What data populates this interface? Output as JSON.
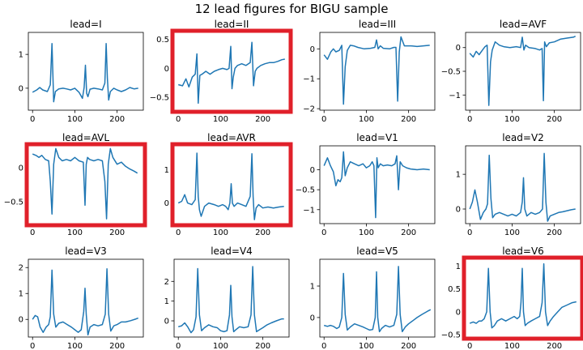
{
  "figure": {
    "title": "12 lead figures for BIGU sample",
    "line_color": "#1f77b4",
    "highlight_color": "#e0202a"
  },
  "chart_data": [
    {
      "type": "line",
      "title": "lead=I",
      "highlighted": false,
      "xlim": [
        -10,
        262
      ],
      "ylim": [
        -0.65,
        1.65
      ],
      "xticks": [
        0,
        100,
        200
      ],
      "yticks": [
        0,
        1
      ],
      "x": [
        0,
        10,
        17,
        24,
        35,
        42,
        46,
        50,
        54,
        62,
        72,
        80,
        90,
        100,
        110,
        118,
        122,
        125,
        128,
        131,
        136,
        145,
        155,
        165,
        171,
        174,
        177,
        180,
        184,
        192,
        200,
        210,
        220,
        230,
        240,
        250
      ],
      "values": [
        -0.12,
        -0.05,
        0.02,
        -0.05,
        -0.1,
        0.1,
        1.32,
        -0.4,
        -0.1,
        -0.02,
        0.0,
        -0.02,
        -0.05,
        0.0,
        -0.12,
        -0.3,
        0.02,
        0.68,
        -0.15,
        -0.25,
        -0.03,
        0.0,
        -0.02,
        -0.05,
        0.15,
        1.32,
        0.3,
        -0.35,
        -0.1,
        0.0,
        -0.05,
        -0.1,
        -0.05,
        0.02,
        -0.02,
        0.0
      ]
    },
    {
      "type": "line",
      "title": "lead=II",
      "highlighted": true,
      "xlim": [
        -10,
        262
      ],
      "ylim": [
        -0.72,
        0.62
      ],
      "xticks": [
        0,
        100,
        200
      ],
      "yticks": [
        -0.5,
        0,
        0.5
      ],
      "x": [
        0,
        10,
        18,
        25,
        33,
        40,
        44,
        47,
        51,
        56,
        65,
        75,
        85,
        95,
        105,
        115,
        120,
        124,
        127,
        130,
        134,
        140,
        150,
        160,
        170,
        174,
        178,
        182,
        186,
        195,
        205,
        215,
        225,
        235,
        245,
        252
      ],
      "values": [
        -0.28,
        -0.3,
        -0.18,
        -0.32,
        -0.15,
        -0.1,
        0.25,
        -0.6,
        -0.12,
        -0.1,
        -0.05,
        -0.1,
        -0.05,
        -0.02,
        0.0,
        -0.02,
        0.0,
        0.38,
        -0.35,
        -0.15,
        0.0,
        0.05,
        0.08,
        0.05,
        0.1,
        0.45,
        -0.3,
        -0.05,
        0.0,
        0.05,
        0.08,
        0.1,
        0.1,
        0.12,
        0.15,
        0.16
      ]
    },
    {
      "type": "line",
      "title": "lead=III",
      "highlighted": false,
      "xlim": [
        -10,
        262
      ],
      "ylim": [
        -2.05,
        0.55
      ],
      "xticks": [
        0,
        100,
        200
      ],
      "yticks": [
        -2,
        -1,
        0
      ],
      "x": [
        0,
        8,
        16,
        22,
        28,
        36,
        42,
        46,
        50,
        55,
        62,
        70,
        80,
        95,
        110,
        120,
        124,
        128,
        133,
        140,
        155,
        165,
        170,
        174,
        178,
        182,
        190,
        205,
        220,
        235,
        250
      ],
      "values": [
        -0.2,
        -0.35,
        -0.1,
        0.0,
        -0.1,
        -0.05,
        0.12,
        -1.85,
        -0.6,
        -0.05,
        0.12,
        0.1,
        0.05,
        0.0,
        0.02,
        0.05,
        0.3,
        0.0,
        0.1,
        0.02,
        0.0,
        0.05,
        0.05,
        -1.75,
        -0.1,
        0.4,
        0.1,
        0.1,
        0.08,
        0.1,
        0.12
      ]
    },
    {
      "type": "line",
      "title": "lead=AVF",
      "highlighted": false,
      "xlim": [
        -10,
        262
      ],
      "ylim": [
        -1.32,
        0.32
      ],
      "xticks": [
        0,
        100,
        200
      ],
      "yticks": [
        -1,
        -0.5,
        0
      ],
      "x": [
        0,
        8,
        15,
        22,
        30,
        36,
        41,
        45,
        49,
        53,
        60,
        70,
        80,
        95,
        110,
        120,
        124,
        128,
        132,
        140,
        155,
        165,
        171,
        174,
        177,
        181,
        188,
        200,
        215,
        230,
        245,
        250
      ],
      "values": [
        -0.12,
        -0.2,
        -0.08,
        -0.15,
        -0.05,
        0.02,
        0.05,
        -1.22,
        -0.3,
        -0.05,
        0.12,
        0.05,
        0.02,
        0.0,
        0.02,
        0.0,
        0.22,
        -0.05,
        0.05,
        0.0,
        -0.02,
        -0.05,
        -0.02,
        -1.12,
        0.12,
        0.02,
        0.1,
        0.12,
        0.18,
        0.2,
        0.22,
        0.24
      ]
    },
    {
      "type": "line",
      "title": "lead=AVL",
      "highlighted": true,
      "xlim": [
        -10,
        262
      ],
      "ylim": [
        -0.82,
        0.32
      ],
      "xticks": [
        0,
        100,
        200
      ],
      "yticks": [
        -0.5,
        0
      ],
      "x": [
        0,
        8,
        15,
        22,
        30,
        38,
        42,
        46,
        50,
        55,
        62,
        70,
        80,
        90,
        100,
        110,
        120,
        124,
        127,
        130,
        135,
        145,
        155,
        165,
        171,
        175,
        179,
        184,
        190,
        200,
        210,
        220,
        230,
        240,
        248
      ],
      "values": [
        0.2,
        0.18,
        0.15,
        0.18,
        0.12,
        0.1,
        -0.2,
        -0.68,
        0.05,
        0.28,
        0.15,
        0.1,
        0.12,
        0.1,
        0.15,
        0.1,
        0.08,
        -0.55,
        0.05,
        0.15,
        0.12,
        0.1,
        0.12,
        0.1,
        -0.2,
        -0.75,
        0.05,
        0.28,
        0.15,
        0.05,
        0.08,
        0.02,
        -0.02,
        -0.05,
        -0.08
      ]
    },
    {
      "type": "line",
      "title": "lead=AVR",
      "highlighted": true,
      "xlim": [
        -10,
        262
      ],
      "ylim": [
        -0.62,
        1.72
      ],
      "xticks": [
        0,
        100,
        200
      ],
      "yticks": [
        0,
        1
      ],
      "x": [
        0,
        8,
        15,
        22,
        32,
        40,
        44,
        47,
        50,
        54,
        62,
        72,
        85,
        95,
        105,
        112,
        118,
        122,
        125,
        128,
        132,
        140,
        150,
        160,
        170,
        174,
        177,
        180,
        184,
        190,
        200,
        212,
        225,
        238,
        250
      ],
      "values": [
        0.0,
        0.05,
        0.25,
        0.0,
        -0.05,
        0.1,
        1.5,
        0.2,
        -0.2,
        -0.4,
        -0.1,
        0.0,
        -0.05,
        -0.1,
        -0.05,
        -0.1,
        -0.2,
        0.0,
        0.58,
        0.0,
        -0.1,
        0.0,
        -0.05,
        -0.1,
        0.2,
        1.48,
        0.2,
        -0.5,
        -0.15,
        -0.05,
        -0.15,
        -0.12,
        -0.15,
        -0.12,
        -0.1
      ]
    },
    {
      "type": "line",
      "title": "lead=V1",
      "highlighted": false,
      "xlim": [
        -10,
        262
      ],
      "ylim": [
        -1.35,
        0.6
      ],
      "xticks": [
        0,
        100,
        200
      ],
      "yticks": [
        -1,
        -0.5,
        0
      ],
      "x": [
        0,
        8,
        15,
        22,
        28,
        33,
        38,
        42,
        46,
        50,
        55,
        62,
        72,
        82,
        92,
        100,
        108,
        114,
        118,
        122,
        125,
        128,
        133,
        140,
        150,
        160,
        168,
        172,
        176,
        180,
        186,
        195,
        205,
        220,
        235,
        250
      ],
      "values": [
        0.1,
        0.3,
        0.1,
        -0.05,
        -0.4,
        -0.25,
        -0.3,
        -0.2,
        0.45,
        -0.15,
        0.05,
        0.2,
        0.15,
        0.1,
        0.15,
        0.05,
        0.1,
        0.2,
        0.1,
        -1.2,
        0.3,
        0.05,
        0.15,
        0.1,
        0.12,
        0.1,
        0.15,
        0.35,
        -0.5,
        0.2,
        0.1,
        0.05,
        0.02,
        0.0,
        0.02,
        0.0
      ]
    },
    {
      "type": "line",
      "title": "lead=V2",
      "highlighted": false,
      "xlim": [
        -10,
        262
      ],
      "ylim": [
        -0.42,
        1.82
      ],
      "xticks": [
        0,
        100,
        200
      ],
      "yticks": [
        0,
        1
      ],
      "x": [
        0,
        6,
        12,
        18,
        25,
        32,
        38,
        42,
        46,
        50,
        54,
        60,
        70,
        80,
        90,
        100,
        110,
        120,
        124,
        127,
        130,
        135,
        145,
        155,
        165,
        172,
        176,
        180,
        184,
        190,
        200,
        210,
        220,
        230,
        240,
        250
      ],
      "values": [
        0.0,
        0.2,
        0.55,
        0.2,
        -0.3,
        -0.1,
        0.0,
        0.15,
        1.55,
        0.3,
        -0.25,
        -0.15,
        -0.1,
        -0.15,
        -0.2,
        -0.15,
        -0.2,
        -0.1,
        0.2,
        0.9,
        0.0,
        -0.2,
        -0.1,
        -0.15,
        -0.1,
        0.0,
        1.6,
        0.2,
        -0.35,
        -0.2,
        -0.15,
        -0.1,
        -0.08,
        -0.05,
        -0.02,
        0.0
      ]
    },
    {
      "type": "line",
      "title": "lead=V3",
      "highlighted": false,
      "xlim": [
        -10,
        262
      ],
      "ylim": [
        -0.68,
        2.32
      ],
      "xticks": [
        0,
        100,
        200
      ],
      "yticks": [
        0,
        1,
        2
      ],
      "x": [
        0,
        6,
        12,
        18,
        25,
        32,
        38,
        42,
        46,
        50,
        55,
        62,
        72,
        82,
        92,
        100,
        108,
        115,
        121,
        124,
        127,
        131,
        136,
        145,
        155,
        165,
        172,
        176,
        180,
        185,
        192,
        200,
        210,
        220,
        232,
        245,
        250
      ],
      "values": [
        0.0,
        0.15,
        0.1,
        -0.3,
        -0.5,
        -0.3,
        -0.2,
        0.1,
        1.9,
        0.2,
        -0.3,
        -0.15,
        -0.1,
        -0.2,
        -0.3,
        -0.4,
        -0.5,
        -0.4,
        0.3,
        1.2,
        0.2,
        -0.6,
        -0.3,
        -0.2,
        -0.25,
        -0.2,
        0.2,
        1.95,
        0.2,
        -0.45,
        -0.25,
        -0.2,
        -0.1,
        -0.1,
        -0.05,
        0.02,
        0.05
      ]
    },
    {
      "type": "line",
      "title": "lead=V4",
      "highlighted": false,
      "xlim": [
        -10,
        262
      ],
      "ylim": [
        -0.82,
        3.12
      ],
      "xticks": [
        0,
        100,
        200
      ],
      "yticks": [
        0,
        1,
        2
      ],
      "x": [
        0,
        8,
        15,
        22,
        30,
        36,
        42,
        46,
        50,
        55,
        62,
        72,
        82,
        92,
        100,
        108,
        115,
        121,
        124,
        127,
        131,
        136,
        145,
        155,
        165,
        172,
        176,
        180,
        185,
        192,
        200,
        210,
        220,
        232,
        245,
        250
      ],
      "values": [
        -0.3,
        -0.25,
        -0.1,
        -0.3,
        -0.6,
        -0.45,
        0.2,
        2.65,
        0.3,
        -0.5,
        -0.35,
        -0.2,
        -0.3,
        -0.35,
        -0.5,
        -0.55,
        -0.5,
        0.3,
        1.8,
        0.2,
        -0.55,
        -0.45,
        -0.3,
        -0.35,
        -0.3,
        0.3,
        2.75,
        0.3,
        -0.55,
        -0.45,
        -0.35,
        -0.2,
        -0.1,
        0.0,
        0.1,
        0.1
      ]
    },
    {
      "type": "line",
      "title": "lead=V5",
      "highlighted": false,
      "xlim": [
        -10,
        262
      ],
      "ylim": [
        -0.62,
        1.85
      ],
      "xticks": [
        0,
        100,
        200
      ],
      "yticks": [
        0,
        1
      ],
      "x": [
        0,
        8,
        15,
        22,
        30,
        36,
        42,
        46,
        50,
        55,
        62,
        72,
        82,
        92,
        100,
        108,
        115,
        121,
        124,
        127,
        131,
        136,
        145,
        155,
        165,
        172,
        176,
        180,
        185,
        192,
        200,
        210,
        220,
        232,
        245,
        252
      ],
      "values": [
        -0.25,
        -0.28,
        -0.25,
        -0.28,
        -0.35,
        -0.3,
        0.0,
        1.4,
        0.1,
        -0.4,
        -0.3,
        -0.2,
        -0.25,
        -0.3,
        -0.35,
        -0.4,
        -0.38,
        0.0,
        1.45,
        0.0,
        -0.45,
        -0.35,
        -0.25,
        -0.3,
        -0.25,
        0.1,
        1.62,
        0.1,
        -0.45,
        -0.3,
        -0.2,
        -0.1,
        0.0,
        0.1,
        0.2,
        0.25
      ]
    },
    {
      "type": "line",
      "title": "lead=V6",
      "highlighted": true,
      "xlim": [
        -10,
        262
      ],
      "ylim": [
        -0.55,
        1.15
      ],
      "xticks": [
        0,
        100,
        200
      ],
      "yticks": [
        -0.5,
        0,
        0.5,
        1
      ],
      "x": [
        0,
        8,
        15,
        22,
        28,
        34,
        40,
        44,
        48,
        52,
        58,
        65,
        75,
        85,
        95,
        105,
        112,
        118,
        121,
        124,
        127,
        131,
        136,
        145,
        155,
        165,
        171,
        175,
        179,
        184,
        190,
        198,
        208,
        218,
        230,
        242,
        252
      ],
      "values": [
        -0.25,
        -0.22,
        -0.25,
        -0.2,
        -0.2,
        -0.15,
        0.0,
        0.95,
        0.0,
        -0.35,
        -0.3,
        -0.2,
        -0.15,
        -0.2,
        -0.15,
        -0.1,
        -0.15,
        -0.1,
        0.2,
        0.95,
        0.0,
        -0.3,
        -0.25,
        -0.2,
        -0.15,
        -0.1,
        0.2,
        1.05,
        0.0,
        -0.3,
        -0.2,
        -0.1,
        0.0,
        0.1,
        0.15,
        0.2,
        0.22
      ]
    }
  ]
}
